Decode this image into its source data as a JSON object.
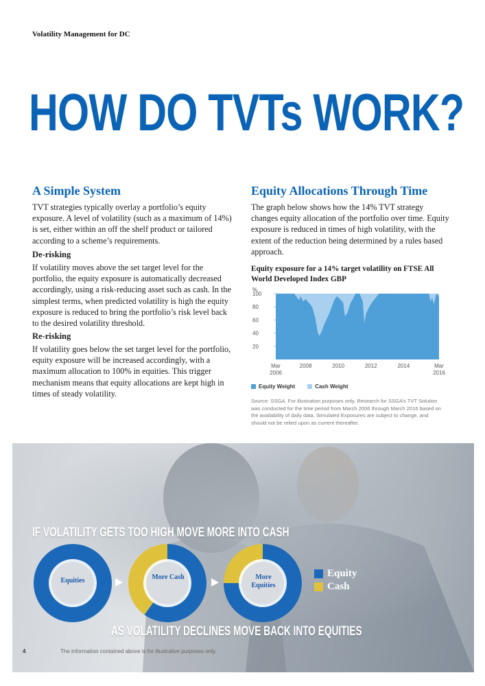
{
  "header": {
    "running_title": "Volatility Management for DC"
  },
  "title": "HOW DO TVTs WORK?",
  "left": {
    "heading": "A Simple System",
    "intro": "TVT strategies typically overlay a portfolio’s equity exposure. A level of volatility (such as a maximum of 14%) is set, either within an off the shelf product or tailored according to a scheme’s requirements.",
    "derisk_heading": "De-risking",
    "derisk_text": "If volatility moves above the set target level for the portfolio, the equity exposure is automatically decreased accordingly, using a risk-reducing asset such as cash. In the simplest terms, when predicted volatility is high the equity exposure is reduced to bring the portfolio’s risk level back to the desired volatility threshold.",
    "rerisk_heading": "Re-risking",
    "rerisk_text": "If volatility goes below the set target level for the portfolio, equity exposure will be increased accordingly, with a maximum allocation to 100% in equities. This trigger mechanism means that equity allocations are kept high in times of steady volatility."
  },
  "right": {
    "heading": "Equity Allocations Through Time",
    "intro": "The graph below shows how the 14% TVT strategy changes equity allocation of the portfolio over time. Equity exposure is reduced in times of high volatility, with the extent of the reduction being determined by a rules based approach.",
    "source_note": "Source: SSGA. For illustration purposes only. Research for SSGA’s TVT Solution was conducted for the time period from March 2006 through March 2016 based on the availability of daily data. Simulated Exposures are subject to change, and should not be relied upon as current thereafter."
  },
  "chart_data": {
    "type": "area",
    "title": "Equity exposure for a 14% target volatility on FTSE All World Developed Index GBP",
    "ylabel": "%",
    "ylim": [
      0,
      100
    ],
    "yticks": [
      "20",
      "40",
      "60",
      "80",
      "100"
    ],
    "xlim": [
      2006.17,
      2016.17
    ],
    "xticks": [
      {
        "value": 2006.17,
        "line1": "Mar",
        "line2": "2006"
      },
      {
        "value": 2008,
        "line1": "2008",
        "line2": ""
      },
      {
        "value": 2010,
        "line1": "2010",
        "line2": ""
      },
      {
        "value": 2012,
        "line1": "2012",
        "line2": ""
      },
      {
        "value": 2014,
        "line1": "2014",
        "line2": ""
      },
      {
        "value": 2016.17,
        "line1": "Mar",
        "line2": "2016"
      }
    ],
    "series": [
      {
        "name": "Equity Weight",
        "color": "#4fa0d8"
      },
      {
        "name": "Cash Weight",
        "color": "#a9d1ef"
      }
    ],
    "x": [
      2006.17,
      2007.3,
      2007.6,
      2007.7,
      2007.85,
      2008.0,
      2008.2,
      2008.4,
      2008.6,
      2008.75,
      2008.85,
      2009.0,
      2009.15,
      2009.3,
      2009.45,
      2009.6,
      2009.75,
      2009.9,
      2010.1,
      2010.3,
      2010.4,
      2010.55,
      2010.75,
      2010.9,
      2011.05,
      2011.3,
      2011.5,
      2011.6,
      2011.7,
      2011.9,
      2012.05,
      2012.3,
      2012.5,
      2012.7,
      2013.0,
      2013.5,
      2014.0,
      2014.5,
      2014.8,
      2015.3,
      2015.55,
      2015.65,
      2015.75,
      2015.85,
      2016.0,
      2016.17
    ],
    "equity": [
      100,
      100,
      90,
      96,
      88,
      92,
      86,
      80,
      62,
      40,
      36,
      44,
      54,
      62,
      70,
      80,
      90,
      96,
      92,
      86,
      66,
      70,
      86,
      92,
      100,
      100,
      88,
      55,
      70,
      80,
      86,
      94,
      100,
      100,
      100,
      100,
      100,
      100,
      100,
      100,
      100,
      88,
      94,
      84,
      100,
      96
    ],
    "colors": {
      "accent": "#0a63b5",
      "equity": "#1c68b8",
      "cash": "#dfc13c"
    }
  },
  "panel": {
    "top_heading": "IF VOLATILITY GETS TOO HIGH MOVE MORE INTO CASH",
    "bottom_heading": "AS VOLATILITY DECLINES MOVE BACK INTO EQUITIES",
    "donuts": [
      {
        "label": "Equities",
        "equity_share": 1.0
      },
      {
        "label": "More Cash",
        "equity_share": 0.6
      },
      {
        "label": "More Equities",
        "equity_share": 0.75
      }
    ],
    "legend": [
      {
        "label": "Equity",
        "color": "#1c68b8"
      },
      {
        "label": "Cash",
        "color": "#dfc13c"
      }
    ]
  },
  "footer": {
    "page_number": "4",
    "note": "The information contained above is for illustrative purposes only."
  }
}
